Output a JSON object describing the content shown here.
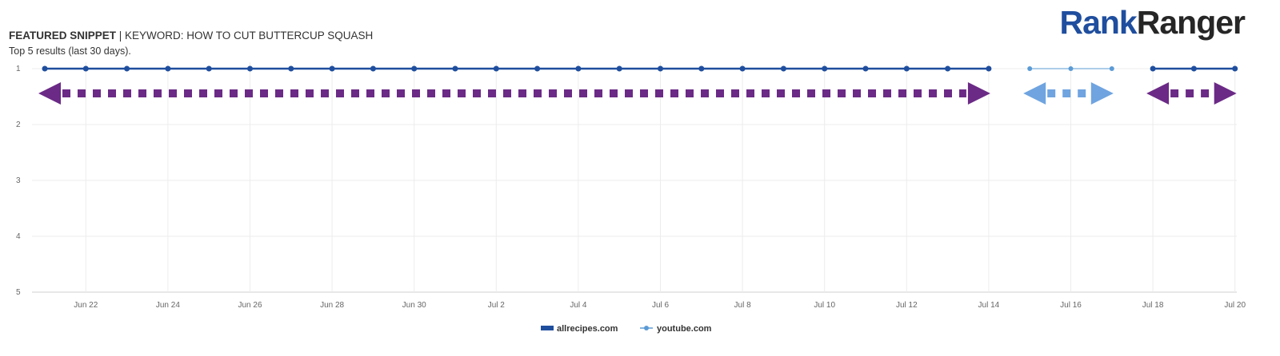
{
  "header": {
    "title_bold": "FEATURED SNIPPET",
    "title_rest": " | KEYWORD: HOW TO CUT BUTTERCUP SQUASH",
    "subtitle": "Top 5 results (last 30 days).",
    "logo_part1": "Rank",
    "logo_part2": "Ranger"
  },
  "chart_data": {
    "type": "line",
    "title": "FEATURED SNIPPET | KEYWORD: HOW TO CUT BUTTERCUP SQUASH",
    "subtitle": "Top 5 results (last 30 days).",
    "y_axis": {
      "min": 1,
      "max": 5,
      "reversed": true,
      "ticks": [
        "1",
        "2",
        "3",
        "4",
        "5"
      ]
    },
    "x_axis": {
      "range": [
        "Jun 21",
        "Jul 20"
      ],
      "tick_labels": [
        "Jun 22",
        "Jun 24",
        "Jun 26",
        "Jun 28",
        "Jun 30",
        "Jul 2",
        "Jul 4",
        "Jul 6",
        "Jul 8",
        "Jul 10",
        "Jul 12",
        "Jul 14",
        "Jul 16",
        "Jul 18",
        "Jul 20"
      ]
    },
    "grid": {
      "vertical": true,
      "horizontal": true
    },
    "legend": {
      "placement": "bottom-center"
    },
    "series": [
      {
        "name": "allrecipes.com",
        "color": "#1f4e9e",
        "points": [
          {
            "date": "Jun 21",
            "rank": 1
          },
          {
            "date": "Jun 22",
            "rank": 1
          },
          {
            "date": "Jun 23",
            "rank": 1
          },
          {
            "date": "Jun 24",
            "rank": 1
          },
          {
            "date": "Jun 25",
            "rank": 1
          },
          {
            "date": "Jun 26",
            "rank": 1
          },
          {
            "date": "Jun 27",
            "rank": 1
          },
          {
            "date": "Jun 28",
            "rank": 1
          },
          {
            "date": "Jun 29",
            "rank": 1
          },
          {
            "date": "Jun 30",
            "rank": 1
          },
          {
            "date": "Jul 1",
            "rank": 1
          },
          {
            "date": "Jul 2",
            "rank": 1
          },
          {
            "date": "Jul 3",
            "rank": 1
          },
          {
            "date": "Jul 4",
            "rank": 1
          },
          {
            "date": "Jul 5",
            "rank": 1
          },
          {
            "date": "Jul 6",
            "rank": 1
          },
          {
            "date": "Jul 7",
            "rank": 1
          },
          {
            "date": "Jul 8",
            "rank": 1
          },
          {
            "date": "Jul 9",
            "rank": 1
          },
          {
            "date": "Jul 10",
            "rank": 1
          },
          {
            "date": "Jul 11",
            "rank": 1
          },
          {
            "date": "Jul 12",
            "rank": 1
          },
          {
            "date": "Jul 13",
            "rank": 1
          },
          {
            "date": "Jul 14",
            "rank": 1
          },
          {
            "date": "Jul 15",
            "rank": null
          },
          {
            "date": "Jul 16",
            "rank": null
          },
          {
            "date": "Jul 17",
            "rank": null
          },
          {
            "date": "Jul 18",
            "rank": 1
          },
          {
            "date": "Jul 19",
            "rank": 1
          },
          {
            "date": "Jul 20",
            "rank": 1
          }
        ]
      },
      {
        "name": "youtube.com",
        "color": "#5b9bd5",
        "points": [
          {
            "date": "Jul 15",
            "rank": 1
          },
          {
            "date": "Jul 16",
            "rank": 1
          },
          {
            "date": "Jul 17",
            "rank": 1
          }
        ]
      }
    ],
    "annotations": [
      {
        "type": "dotted-double-arrow",
        "from": "Jun 21",
        "to": "Jul 14",
        "color": "#6b2a86"
      },
      {
        "type": "dotted-double-arrow",
        "from": "Jul 15",
        "to": "Jul 17",
        "color": "#6fa4e0"
      },
      {
        "type": "dotted-double-arrow",
        "from": "Jul 18",
        "to": "Jul 20",
        "color": "#6b2a86"
      }
    ]
  }
}
